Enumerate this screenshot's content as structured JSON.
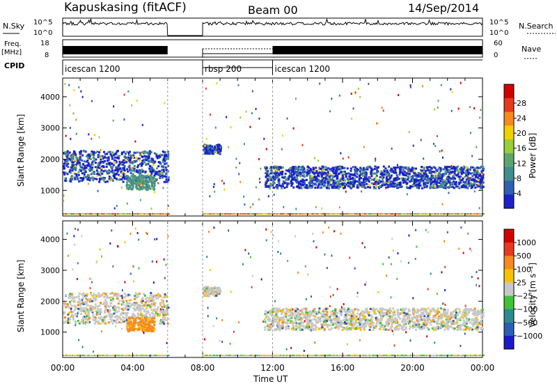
{
  "header": {
    "station": "Kapuskasing (fitACF)",
    "beam": "Beam 00",
    "date": "14/Sep/2014"
  },
  "strips": {
    "nsky_label": "N.Sky",
    "nsky_ticks": [
      "10^5",
      "10^0"
    ],
    "nsearch_label": "N.Search",
    "freq_label_1": "Freq.",
    "freq_label_2": "[MHz]",
    "freq_ticks": [
      "18",
      "8"
    ],
    "nave_label": "Nave",
    "nave_ticks": [
      "60",
      "0"
    ],
    "cpid_label": "CPID",
    "cpid_segments": [
      {
        "name": "icescan 1200",
        "start": 0,
        "end": 6
      },
      {
        "name": "rbsp 200",
        "start": 8,
        "end": 12
      },
      {
        "name": "icescan 1200",
        "start": 12,
        "end": 24
      }
    ]
  },
  "chart_data": [
    {
      "type": "heatmap",
      "title": "",
      "xlabel": "Time UT",
      "ylabel": "Slant Range [km]",
      "xlim": [
        0,
        24
      ],
      "ylim": [
        180,
        4600
      ],
      "x_ticks": [
        "00:00",
        "04:00",
        "08:00",
        "12:00",
        "16:00",
        "20:00",
        "00:00"
      ],
      "y_ticks": [
        1000,
        2000,
        3000,
        4000
      ],
      "colorbar_label": "Power [dB]",
      "colorbar_ticks": [
        "4",
        "8",
        "12",
        "16",
        "20",
        "24",
        "28"
      ],
      "colorbar_colors": [
        "#1c20c6",
        "#2f5fb0",
        "#3f8d8f",
        "#5fa36e",
        "#9acd3a",
        "#f2d000",
        "#f58a1f",
        "#e53a1e",
        "#d10000"
      ],
      "gaps": [
        [
          6,
          8
        ]
      ],
      "scatter_bands": [
        {
          "t_start": 0,
          "t_end": 6,
          "range_low": 1300,
          "range_high": 2300
        },
        {
          "t_start": 8,
          "t_end": 9,
          "range_low": 2200,
          "range_high": 2500
        },
        {
          "t_start": 11.5,
          "t_end": 24,
          "range_low": 1100,
          "range_high": 1800
        }
      ]
    },
    {
      "type": "heatmap",
      "title": "",
      "xlabel": "Time UT",
      "ylabel": "Slant Range [km]",
      "xlim": [
        0,
        24
      ],
      "ylim": [
        180,
        4600
      ],
      "x_ticks": [
        "00:00",
        "04:00",
        "08:00",
        "12:00",
        "16:00",
        "20:00",
        "00:00"
      ],
      "y_ticks": [
        1000,
        2000,
        3000,
        4000
      ],
      "colorbar_label": "Velocity [m s⁻¹]",
      "colorbar_ticks": [
        "1000",
        "500",
        "100",
        "25",
        "−25",
        "−100",
        "−500",
        "−1000"
      ],
      "colorbar_colors": [
        "#1a1ac8",
        "#2a5fb5",
        "#2f8a8f",
        "#3fc23a",
        "#c8c8c8",
        "#f5c400",
        "#f58a1f",
        "#e53a1e",
        "#d10000"
      ],
      "gaps": [
        [
          6,
          8
        ]
      ],
      "scatter_bands": [
        {
          "t_start": 0,
          "t_end": 6,
          "range_low": 1300,
          "range_high": 2300
        },
        {
          "t_start": 8,
          "t_end": 9,
          "range_low": 2200,
          "range_high": 2500
        },
        {
          "t_start": 11.5,
          "t_end": 24,
          "range_low": 1100,
          "range_high": 1800
        }
      ]
    }
  ]
}
